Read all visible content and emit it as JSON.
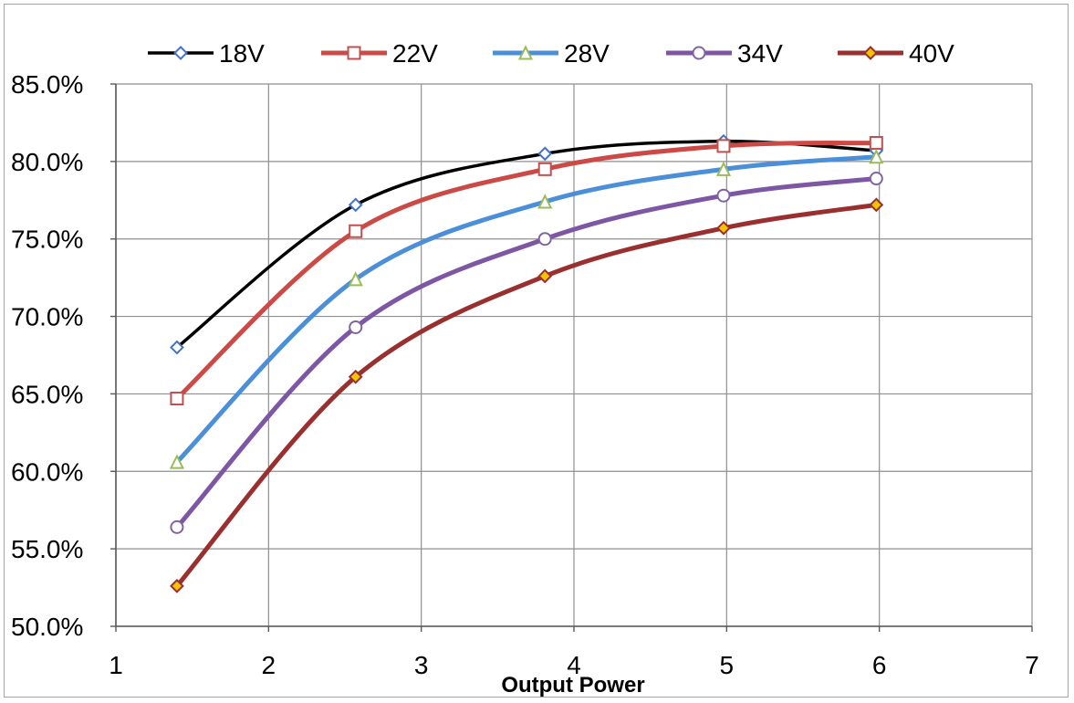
{
  "chart_data": {
    "type": "line",
    "title": "",
    "xlabel": "Output Power",
    "ylabel": "",
    "xlim": [
      1,
      7
    ],
    "ylim": [
      0.5,
      0.85
    ],
    "x_ticks": [
      "1",
      "2",
      "3",
      "4",
      "5",
      "6",
      "7"
    ],
    "y_ticks": [
      "50.0%",
      "55.0%",
      "60.0%",
      "65.0%",
      "70.0%",
      "75.0%",
      "80.0%",
      "85.0%"
    ],
    "grid": true,
    "legend_position": "top",
    "x": [
      1.4,
      2.57,
      3.81,
      4.98,
      5.98
    ],
    "series": [
      {
        "name": "18V",
        "color": "#000000",
        "marker": "diamond",
        "marker_stroke": "#4472c4",
        "marker_fill": "#ffffff",
        "values": [
          0.68,
          0.772,
          0.805,
          0.813,
          0.807
        ]
      },
      {
        "name": "22V",
        "color": "#cc4a46",
        "marker": "square",
        "marker_stroke": "#c0504d",
        "marker_fill": "#ffffff",
        "values": [
          0.647,
          0.755,
          0.795,
          0.81,
          0.812
        ]
      },
      {
        "name": "28V",
        "color": "#4a8fd8",
        "marker": "triangle",
        "marker_stroke": "#9bbb59",
        "marker_fill": "#ffffff",
        "values": [
          0.606,
          0.724,
          0.774,
          0.795,
          0.803
        ]
      },
      {
        "name": "34V",
        "color": "#7d56a4",
        "marker": "circle",
        "marker_stroke": "#8064a2",
        "marker_fill": "#ffffff",
        "values": [
          0.564,
          0.693,
          0.75,
          0.778,
          0.789
        ]
      },
      {
        "name": "40V",
        "color": "#9a2f2f",
        "marker": "diamond",
        "marker_stroke": "#9a2f2f",
        "marker_fill": "#f2c500",
        "values": [
          0.526,
          0.661,
          0.726,
          0.757,
          0.772
        ]
      }
    ]
  }
}
